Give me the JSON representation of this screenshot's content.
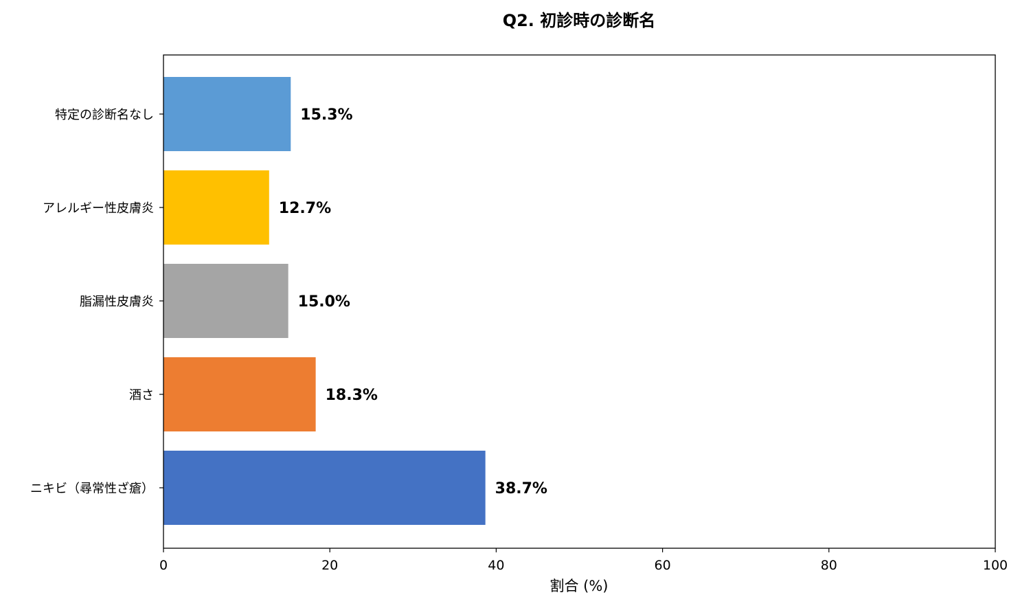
{
  "chart_data": {
    "type": "bar",
    "orientation": "horizontal",
    "title": "Q2. 初診時の診断名",
    "xlabel": "割合 (%)",
    "ylabel": "",
    "xlim": [
      0,
      100
    ],
    "xticks": [
      "0",
      "20",
      "40",
      "60",
      "80",
      "100"
    ],
    "grid": false,
    "categories": [
      "ニキビ（尋常性ざ瘡）",
      "酒さ",
      "脂漏性皮膚炎",
      "アレルギー性皮膚炎",
      "特定の診断名なし"
    ],
    "values": [
      38.7,
      18.3,
      15.0,
      12.7,
      15.3
    ],
    "data_labels": [
      "38.7%",
      "18.3%",
      "15.0%",
      "12.7%",
      "15.3%"
    ],
    "colors": [
      "#4472C4",
      "#ED7D31",
      "#A5A5A5",
      "#FFC000",
      "#5B9BD5"
    ]
  }
}
